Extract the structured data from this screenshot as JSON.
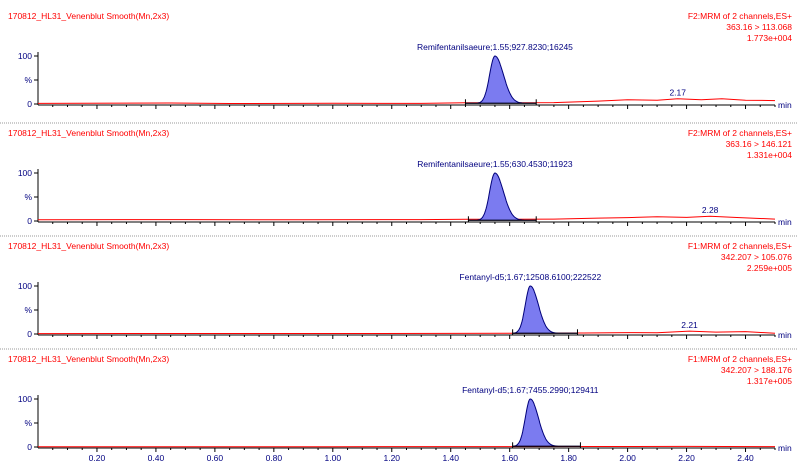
{
  "colors": {
    "header_text": "#ff0000",
    "axis_text": "#000080",
    "trace": "#ff0000",
    "peak_fill": "#7b7bf0",
    "peak_outline": "#00007a",
    "baseline": "#000000"
  },
  "chart_data": {
    "type": "line",
    "x_axis": {
      "range": [
        0.0,
        2.5
      ],
      "ticks": [
        "0.20",
        "0.40",
        "0.60",
        "0.80",
        "1.00",
        "1.20",
        "1.40",
        "1.60",
        "1.80",
        "2.00",
        "2.20",
        "2.40"
      ],
      "tick_values": [
        0.2,
        0.4,
        0.6,
        0.8,
        1.0,
        1.2,
        1.4,
        1.6,
        1.8,
        2.0,
        2.2,
        2.4
      ],
      "unit": "min"
    },
    "panels": [
      {
        "sample": "170812_HL31_Venenblut Smooth(Mn,2x3)",
        "function": "F2:MRM of 2 channels,ES+",
        "transition": "363.16 > 113.068",
        "intensity": "1.773e+004",
        "y_ticks": [
          "100",
          "%",
          "0"
        ],
        "peak_label": "Remifentanilsaeure;1.55;927.8230;16245",
        "peak": {
          "rt": 1.55,
          "height": 100,
          "width": 0.018,
          "start": 1.45,
          "end": 1.69
        },
        "minor_label": {
          "text": "2.17",
          "x": 2.17
        },
        "noise": [
          [
            0.0,
            1.2
          ],
          [
            0.45,
            2.0
          ],
          [
            0.65,
            1.0
          ],
          [
            1.0,
            1.5
          ],
          [
            1.3,
            1.2
          ],
          [
            1.45,
            2.5
          ],
          [
            1.75,
            3.0
          ],
          [
            1.9,
            6.0
          ],
          [
            2.0,
            9.0
          ],
          [
            2.1,
            8.0
          ],
          [
            2.17,
            11.0
          ],
          [
            2.25,
            9.0
          ],
          [
            2.32,
            11.0
          ],
          [
            2.4,
            8.0
          ],
          [
            2.5,
            7.0
          ]
        ]
      },
      {
        "sample": "170812_HL31_Venenblut Smooth(Mn,2x3)",
        "function": "F2:MRM of 2 channels,ES+",
        "transition": "363.16 > 146.121",
        "intensity": "1.331e+004",
        "y_ticks": [
          "100",
          "%",
          "0"
        ],
        "peak_label": "Remifentanilsaeure;1.55;630.4530;11923",
        "peak": {
          "rt": 1.55,
          "height": 100,
          "width": 0.018,
          "start": 1.46,
          "end": 1.69
        },
        "minor_label": {
          "text": "2.28",
          "x": 2.28
        },
        "noise": [
          [
            0.0,
            2.5
          ],
          [
            0.5,
            3.0
          ],
          [
            0.9,
            2.5
          ],
          [
            1.3,
            3.0
          ],
          [
            1.46,
            3.5
          ],
          [
            1.75,
            4.0
          ],
          [
            1.9,
            6.0
          ],
          [
            2.0,
            7.0
          ],
          [
            2.1,
            9.0
          ],
          [
            2.2,
            7.5
          ],
          [
            2.28,
            10.0
          ],
          [
            2.38,
            7.0
          ],
          [
            2.5,
            4.0
          ]
        ]
      },
      {
        "sample": "170812_HL31_Venenblut Smooth(Mn,2x3)",
        "function": "F1:MRM of 2 channels,ES+",
        "transition": "342.207 > 105.076",
        "intensity": "2.259e+005",
        "y_ticks": [
          "100",
          "%",
          "0"
        ],
        "peak_label": "Fentanyl-d5;1.67;12508.6100;222522",
        "peak": {
          "rt": 1.67,
          "height": 100,
          "width": 0.017,
          "start": 1.61,
          "end": 1.83
        },
        "minor_label": {
          "text": "2.21",
          "x": 2.21
        },
        "noise": [
          [
            0.0,
            0.8
          ],
          [
            0.8,
            1.0
          ],
          [
            1.4,
            1.2
          ],
          [
            1.6,
            1.5
          ],
          [
            1.85,
            2.0
          ],
          [
            2.0,
            3.0
          ],
          [
            2.1,
            2.5
          ],
          [
            2.21,
            6.0
          ],
          [
            2.3,
            4.0
          ],
          [
            2.4,
            5.0
          ],
          [
            2.5,
            1.5
          ]
        ]
      },
      {
        "sample": "170812_HL31_Venenblut Smooth(Mn,2x3)",
        "function": "F1:MRM of 2 channels,ES+",
        "transition": "342.207 > 188.176",
        "intensity": "1.317e+005",
        "y_ticks": [
          "100",
          "%",
          "0"
        ],
        "peak_label": "Fentanyl-d5;1.67;7455.2990;129411",
        "peak": {
          "rt": 1.67,
          "height": 100,
          "width": 0.017,
          "start": 1.61,
          "end": 1.84
        },
        "minor_label": {
          "text": "",
          "x": 2.2
        },
        "noise": [
          [
            0.0,
            0.5
          ],
          [
            1.0,
            0.6
          ],
          [
            1.6,
            0.8
          ],
          [
            1.9,
            1.0
          ],
          [
            2.2,
            1.2
          ],
          [
            2.5,
            0.8
          ]
        ]
      }
    ]
  }
}
